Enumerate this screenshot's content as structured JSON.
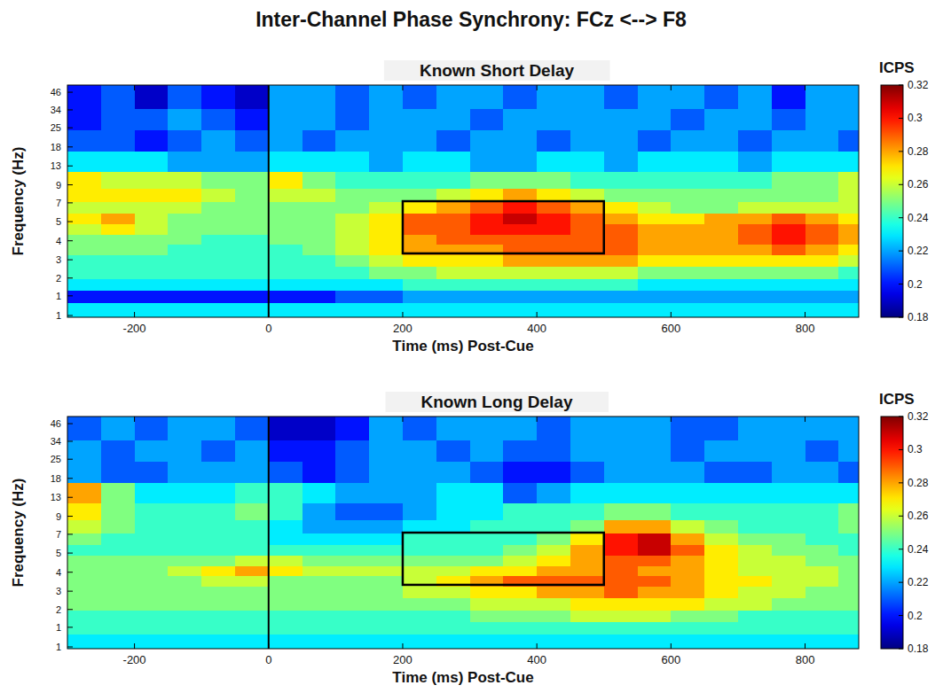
{
  "title": "Inter-Channel Phase Synchrony: FCz <--> F8",
  "chart_data": [
    {
      "type": "heatmap",
      "title": "Known Short Delay",
      "x_label": "Time (ms) Post-Cue",
      "y_label": "Frequency (Hz)",
      "log": "y",
      "x": [
        -275,
        -225,
        -175,
        -125,
        -75,
        -25,
        25,
        75,
        125,
        175,
        225,
        275,
        325,
        375,
        425,
        475,
        525,
        575,
        625,
        675,
        725,
        775,
        825,
        875
      ],
      "y": [
        1.1,
        1.4,
        1.7,
        2.1,
        2.6,
        3.1,
        3.7,
        4.4,
        5.3,
        6.4,
        7.8,
        10,
        14,
        20,
        29,
        42
      ],
      "xlim": [
        -300,
        880
      ],
      "ylim": [
        0.97,
        52
      ],
      "xticks": [
        -200,
        0,
        200,
        400,
        600,
        800
      ],
      "yticks": [
        {
          "value": 1,
          "label": "1"
        },
        {
          "value": 1.4,
          "label": "1"
        },
        {
          "value": 1.9,
          "label": "2"
        },
        {
          "value": 2.6,
          "label": "3"
        },
        {
          "value": 3.6,
          "label": "4"
        },
        5,
        {
          "value": 6.9,
          "label": "7"
        },
        {
          "value": 9.4,
          "label": "9"
        },
        13,
        18,
        25,
        34,
        46
      ],
      "event_x": 0,
      "box": {
        "x": [
          200,
          500
        ],
        "y": [
          2.9,
          7.1
        ]
      },
      "colorbar": {
        "label": "ICPS",
        "range": [
          0.18,
          0.32
        ],
        "ticks": [
          0.18,
          0.2,
          0.22,
          0.24,
          0.26,
          0.28,
          0.3,
          0.32
        ]
      },
      "values": [
        [
          0.23,
          0.23,
          0.23,
          0.23,
          0.23,
          0.23,
          0.23,
          0.23,
          0.23,
          0.23,
          0.23,
          0.23,
          0.23,
          0.23,
          0.23,
          0.23,
          0.23,
          0.23,
          0.23,
          0.23,
          0.23,
          0.23,
          0.23,
          0.23
        ],
        [
          0.2,
          0.2,
          0.2,
          0.2,
          0.2,
          0.2,
          0.2,
          0.2,
          0.21,
          0.21,
          0.22,
          0.22,
          0.22,
          0.22,
          0.22,
          0.22,
          0.22,
          0.22,
          0.22,
          0.22,
          0.22,
          0.22,
          0.22,
          0.22
        ],
        [
          0.23,
          0.23,
          0.23,
          0.23,
          0.23,
          0.23,
          0.23,
          0.23,
          0.23,
          0.23,
          0.24,
          0.24,
          0.24,
          0.24,
          0.24,
          0.24,
          0.24,
          0.23,
          0.23,
          0.23,
          0.23,
          0.23,
          0.23,
          0.23
        ],
        [
          0.24,
          0.24,
          0.24,
          0.24,
          0.24,
          0.24,
          0.24,
          0.24,
          0.24,
          0.25,
          0.25,
          0.26,
          0.26,
          0.26,
          0.26,
          0.26,
          0.26,
          0.25,
          0.25,
          0.25,
          0.25,
          0.25,
          0.25,
          0.24
        ],
        [
          0.24,
          0.24,
          0.24,
          0.24,
          0.24,
          0.24,
          0.24,
          0.24,
          0.25,
          0.26,
          0.27,
          0.27,
          0.27,
          0.28,
          0.28,
          0.28,
          0.28,
          0.27,
          0.27,
          0.27,
          0.27,
          0.27,
          0.27,
          0.26
        ],
        [
          0.25,
          0.25,
          0.25,
          0.24,
          0.24,
          0.24,
          0.24,
          0.25,
          0.26,
          0.27,
          0.28,
          0.28,
          0.28,
          0.29,
          0.29,
          0.29,
          0.29,
          0.28,
          0.28,
          0.28,
          0.28,
          0.29,
          0.28,
          0.27
        ],
        [
          0.25,
          0.25,
          0.25,
          0.25,
          0.24,
          0.24,
          0.25,
          0.25,
          0.26,
          0.27,
          0.28,
          0.29,
          0.29,
          0.29,
          0.29,
          0.29,
          0.29,
          0.28,
          0.28,
          0.28,
          0.29,
          0.3,
          0.29,
          0.28
        ],
        [
          0.26,
          0.27,
          0.26,
          0.25,
          0.25,
          0.25,
          0.25,
          0.25,
          0.26,
          0.27,
          0.29,
          0.29,
          0.3,
          0.3,
          0.3,
          0.29,
          0.29,
          0.28,
          0.28,
          0.28,
          0.29,
          0.3,
          0.29,
          0.28
        ],
        [
          0.27,
          0.28,
          0.26,
          0.25,
          0.25,
          0.25,
          0.25,
          0.25,
          0.26,
          0.27,
          0.29,
          0.29,
          0.3,
          0.31,
          0.3,
          0.29,
          0.28,
          0.27,
          0.27,
          0.28,
          0.28,
          0.29,
          0.28,
          0.27
        ],
        [
          0.26,
          0.26,
          0.26,
          0.26,
          0.25,
          0.25,
          0.25,
          0.25,
          0.25,
          0.26,
          0.27,
          0.28,
          0.29,
          0.3,
          0.29,
          0.28,
          0.27,
          0.26,
          0.25,
          0.25,
          0.26,
          0.26,
          0.26,
          0.26
        ],
        [
          0.27,
          0.27,
          0.27,
          0.27,
          0.26,
          0.25,
          0.26,
          0.26,
          0.25,
          0.25,
          0.25,
          0.26,
          0.27,
          0.28,
          0.27,
          0.26,
          0.25,
          0.25,
          0.25,
          0.25,
          0.25,
          0.25,
          0.25,
          0.26
        ],
        [
          0.27,
          0.26,
          0.26,
          0.26,
          0.25,
          0.25,
          0.27,
          0.25,
          0.24,
          0.24,
          0.24,
          0.24,
          0.25,
          0.25,
          0.25,
          0.24,
          0.24,
          0.24,
          0.24,
          0.24,
          0.24,
          0.25,
          0.25,
          0.26
        ],
        [
          0.23,
          0.23,
          0.23,
          0.22,
          0.22,
          0.22,
          0.23,
          0.23,
          0.23,
          0.22,
          0.23,
          0.23,
          0.22,
          0.22,
          0.23,
          0.23,
          0.22,
          0.23,
          0.23,
          0.23,
          0.22,
          0.23,
          0.23,
          0.23
        ],
        [
          0.21,
          0.21,
          0.2,
          0.21,
          0.22,
          0.21,
          0.22,
          0.21,
          0.22,
          0.22,
          0.22,
          0.21,
          0.22,
          0.22,
          0.21,
          0.22,
          0.22,
          0.21,
          0.22,
          0.22,
          0.21,
          0.22,
          0.22,
          0.21
        ],
        [
          0.2,
          0.21,
          0.21,
          0.22,
          0.21,
          0.2,
          0.22,
          0.22,
          0.21,
          0.22,
          0.22,
          0.22,
          0.21,
          0.22,
          0.22,
          0.22,
          0.22,
          0.22,
          0.21,
          0.22,
          0.22,
          0.21,
          0.22,
          0.22
        ],
        [
          0.2,
          0.21,
          0.19,
          0.21,
          0.2,
          0.19,
          0.22,
          0.22,
          0.21,
          0.22,
          0.21,
          0.22,
          0.22,
          0.21,
          0.22,
          0.22,
          0.21,
          0.22,
          0.22,
          0.21,
          0.22,
          0.2,
          0.22,
          0.22
        ]
      ]
    },
    {
      "type": "heatmap",
      "title": "Known Long Delay",
      "x_label": "Time (ms) Post-Cue",
      "y_label": "Frequency (Hz)",
      "log": "y",
      "x": [
        -275,
        -225,
        -175,
        -125,
        -75,
        -25,
        25,
        75,
        125,
        175,
        225,
        275,
        325,
        375,
        425,
        475,
        525,
        575,
        625,
        675,
        725,
        775,
        825,
        875
      ],
      "y": [
        1.1,
        1.4,
        1.7,
        2.1,
        2.6,
        3.1,
        3.7,
        4.4,
        5.3,
        6.4,
        7.8,
        10,
        14,
        20,
        29,
        42
      ],
      "xlim": [
        -300,
        880
      ],
      "ylim": [
        0.97,
        52
      ],
      "xticks": [
        -200,
        0,
        200,
        400,
        600,
        800
      ],
      "yticks": [
        {
          "value": 1,
          "label": "1"
        },
        {
          "value": 1.4,
          "label": "1"
        },
        {
          "value": 1.9,
          "label": "2"
        },
        {
          "value": 2.6,
          "label": "3"
        },
        {
          "value": 3.6,
          "label": "4"
        },
        5,
        {
          "value": 6.9,
          "label": "7"
        },
        {
          "value": 9.4,
          "label": "9"
        },
        13,
        18,
        25,
        34,
        46
      ],
      "event_x": 0,
      "box": {
        "x": [
          200,
          500
        ],
        "y": [
          2.9,
          7.1
        ]
      },
      "colorbar": {
        "label": "ICPS",
        "range": [
          0.18,
          0.32
        ],
        "ticks": [
          0.18,
          0.2,
          0.22,
          0.24,
          0.26,
          0.28,
          0.3,
          0.32
        ]
      },
      "values": [
        [
          0.23,
          0.23,
          0.23,
          0.23,
          0.23,
          0.23,
          0.23,
          0.23,
          0.23,
          0.23,
          0.23,
          0.23,
          0.23,
          0.23,
          0.23,
          0.23,
          0.23,
          0.23,
          0.23,
          0.23,
          0.23,
          0.23,
          0.23,
          0.23
        ],
        [
          0.24,
          0.24,
          0.24,
          0.24,
          0.24,
          0.24,
          0.24,
          0.24,
          0.24,
          0.24,
          0.24,
          0.24,
          0.24,
          0.24,
          0.24,
          0.24,
          0.24,
          0.24,
          0.24,
          0.24,
          0.24,
          0.24,
          0.24,
          0.24
        ],
        [
          0.24,
          0.24,
          0.24,
          0.24,
          0.24,
          0.24,
          0.24,
          0.24,
          0.24,
          0.24,
          0.24,
          0.24,
          0.25,
          0.25,
          0.25,
          0.26,
          0.26,
          0.26,
          0.25,
          0.25,
          0.24,
          0.24,
          0.24,
          0.24
        ],
        [
          0.25,
          0.25,
          0.25,
          0.25,
          0.25,
          0.25,
          0.25,
          0.25,
          0.25,
          0.25,
          0.25,
          0.25,
          0.26,
          0.26,
          0.26,
          0.27,
          0.27,
          0.27,
          0.27,
          0.26,
          0.26,
          0.25,
          0.25,
          0.25
        ],
        [
          0.25,
          0.25,
          0.25,
          0.25,
          0.25,
          0.25,
          0.25,
          0.25,
          0.25,
          0.25,
          0.26,
          0.26,
          0.27,
          0.27,
          0.28,
          0.28,
          0.29,
          0.28,
          0.28,
          0.27,
          0.26,
          0.26,
          0.25,
          0.25
        ],
        [
          0.25,
          0.25,
          0.25,
          0.25,
          0.26,
          0.26,
          0.25,
          0.25,
          0.25,
          0.25,
          0.26,
          0.27,
          0.28,
          0.29,
          0.29,
          0.29,
          0.29,
          0.29,
          0.28,
          0.27,
          0.27,
          0.26,
          0.26,
          0.25
        ],
        [
          0.25,
          0.25,
          0.25,
          0.26,
          0.27,
          0.28,
          0.27,
          0.26,
          0.26,
          0.26,
          0.26,
          0.26,
          0.27,
          0.27,
          0.28,
          0.28,
          0.29,
          0.28,
          0.28,
          0.27,
          0.26,
          0.26,
          0.26,
          0.25
        ],
        [
          0.25,
          0.25,
          0.25,
          0.25,
          0.25,
          0.26,
          0.26,
          0.25,
          0.25,
          0.25,
          0.25,
          0.25,
          0.25,
          0.26,
          0.27,
          0.28,
          0.29,
          0.29,
          0.28,
          0.27,
          0.26,
          0.26,
          0.25,
          0.25
        ],
        [
          0.24,
          0.24,
          0.24,
          0.24,
          0.24,
          0.24,
          0.24,
          0.24,
          0.24,
          0.24,
          0.24,
          0.24,
          0.24,
          0.25,
          0.26,
          0.28,
          0.3,
          0.31,
          0.29,
          0.27,
          0.26,
          0.25,
          0.25,
          0.24
        ],
        [
          0.25,
          0.24,
          0.24,
          0.24,
          0.24,
          0.24,
          0.23,
          0.23,
          0.23,
          0.23,
          0.24,
          0.24,
          0.24,
          0.24,
          0.25,
          0.27,
          0.3,
          0.31,
          0.28,
          0.26,
          0.25,
          0.25,
          0.24,
          0.24
        ],
        [
          0.26,
          0.25,
          0.24,
          0.24,
          0.24,
          0.24,
          0.23,
          0.22,
          0.22,
          0.22,
          0.23,
          0.23,
          0.24,
          0.24,
          0.24,
          0.25,
          0.28,
          0.28,
          0.26,
          0.25,
          0.24,
          0.24,
          0.24,
          0.25
        ],
        [
          0.27,
          0.25,
          0.24,
          0.24,
          0.24,
          0.25,
          0.24,
          0.22,
          0.21,
          0.21,
          0.22,
          0.23,
          0.23,
          0.24,
          0.24,
          0.24,
          0.25,
          0.25,
          0.24,
          0.24,
          0.24,
          0.24,
          0.24,
          0.25
        ],
        [
          0.28,
          0.25,
          0.23,
          0.23,
          0.23,
          0.24,
          0.24,
          0.23,
          0.22,
          0.22,
          0.22,
          0.23,
          0.23,
          0.21,
          0.22,
          0.23,
          0.23,
          0.23,
          0.23,
          0.23,
          0.23,
          0.23,
          0.23,
          0.23
        ],
        [
          0.22,
          0.21,
          0.21,
          0.22,
          0.22,
          0.22,
          0.21,
          0.2,
          0.21,
          0.22,
          0.22,
          0.22,
          0.21,
          0.2,
          0.2,
          0.21,
          0.22,
          0.22,
          0.22,
          0.21,
          0.21,
          0.22,
          0.22,
          0.21
        ],
        [
          0.22,
          0.21,
          0.22,
          0.22,
          0.21,
          0.22,
          0.2,
          0.2,
          0.21,
          0.22,
          0.22,
          0.21,
          0.22,
          0.21,
          0.21,
          0.22,
          0.22,
          0.22,
          0.21,
          0.22,
          0.22,
          0.22,
          0.21,
          0.22
        ],
        [
          0.21,
          0.22,
          0.21,
          0.22,
          0.22,
          0.21,
          0.19,
          0.19,
          0.2,
          0.22,
          0.21,
          0.22,
          0.22,
          0.22,
          0.21,
          0.22,
          0.22,
          0.22,
          0.21,
          0.21,
          0.22,
          0.22,
          0.22,
          0.22
        ]
      ]
    }
  ]
}
